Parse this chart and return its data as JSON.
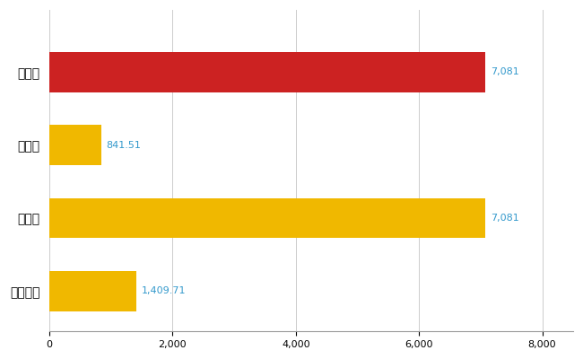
{
  "categories": [
    "那覇市",
    "県平均",
    "県最大",
    "全国平均"
  ],
  "values": [
    7081,
    841.51,
    7081,
    1409.71
  ],
  "bar_colors": [
    "#cc2222",
    "#f0b800",
    "#f0b800",
    "#f0b800"
  ],
  "labels": [
    "7,081",
    "841.51",
    "7,081",
    "1,409.71"
  ],
  "xlim": [
    0,
    8500
  ],
  "xticks": [
    0,
    2000,
    4000,
    6000,
    8000
  ],
  "background_color": "#ffffff",
  "grid_color": "#cccccc",
  "label_color": "#3399cc",
  "bar_height": 0.55,
  "figsize": [
    6.5,
    4.0
  ],
  "dpi": 100
}
